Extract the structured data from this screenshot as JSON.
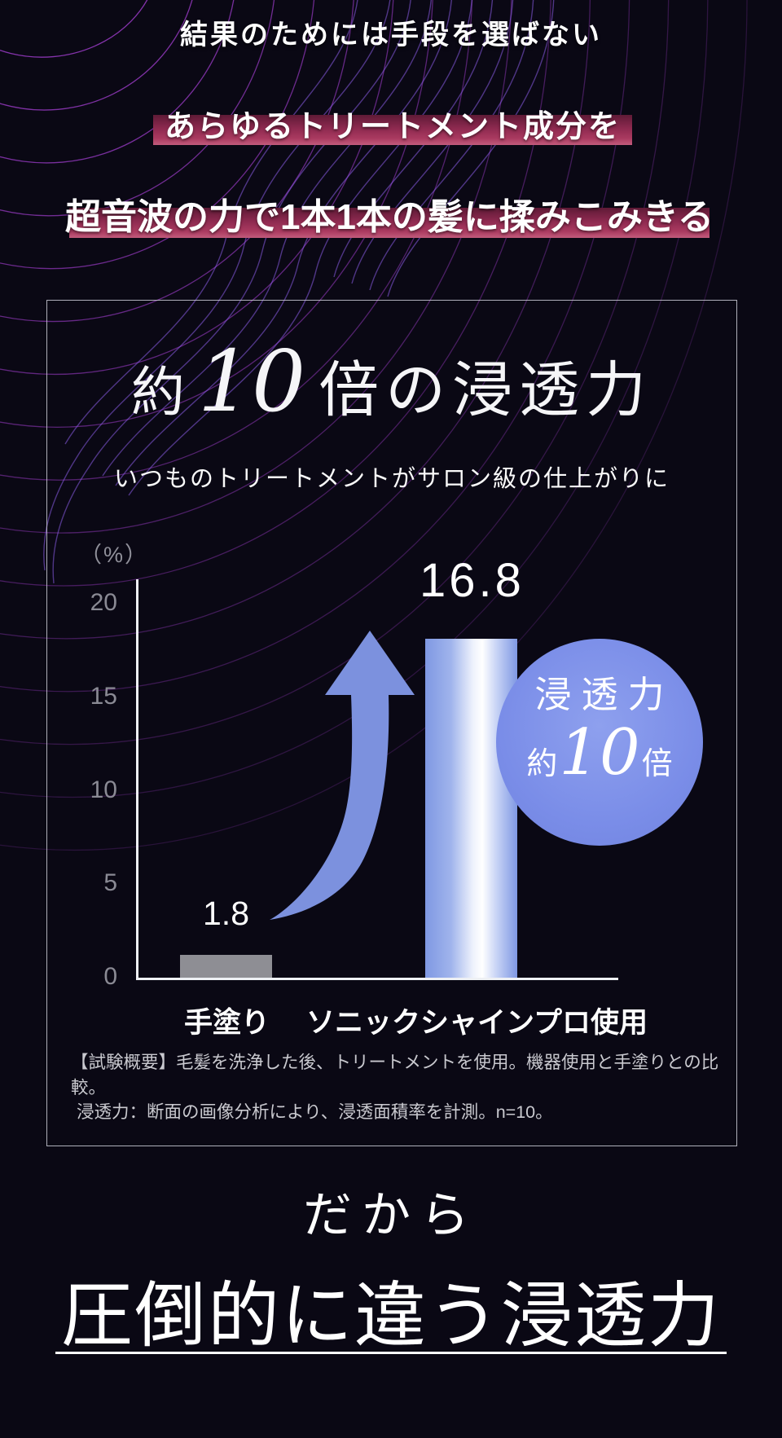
{
  "page": {
    "background": "#0a0814"
  },
  "header": {
    "line1": "結果のためには手段を選ばない",
    "band1": "あらゆるトリートメント成分を",
    "band2": "超音波の力で1本1本の髪に揉みこみきる",
    "band_color": "#a33158"
  },
  "card": {
    "title_prefix": "約",
    "title_number": "10",
    "title_suffix": "倍の浸透力",
    "subtitle": "いつものトリートメントがサロン級の仕上がりに",
    "unit": "（%）",
    "footnote1": "【試験概要】毛髪を洗浄した後、トリートメントを使用。機器使用と手塗りとの比較。",
    "footnote2": "浸透力：断面の画像分析により、浸透面積率を計測。n=10。"
  },
  "badge": {
    "line1": "浸透力",
    "prefix": "約",
    "number": "10",
    "suffix": "倍"
  },
  "chart_data": {
    "type": "bar",
    "title": "約10倍の浸透力",
    "subtitle": "いつものトリートメントがサロン級の仕上がりに",
    "categories": [
      "手塗り",
      "ソニックシャインプロ使用"
    ],
    "values": [
      1.8,
      16.8
    ],
    "value_labels": [
      "1.8",
      "16.8"
    ],
    "ylabel": "（%）",
    "yticks": [
      0,
      5,
      10,
      15,
      20
    ],
    "ylim": [
      0,
      20
    ],
    "grid": false,
    "annotation": "浸透力 約10倍",
    "bar_colors": [
      "#8e8e94",
      "#7f98e3 → #ffffff → #7f98e3"
    ]
  },
  "footer": {
    "kicker": "だから",
    "headline": "圧倒的に違う浸透力"
  },
  "colors": {
    "background": "#0a0814",
    "crimson_band": "#a33158",
    "gray_bar": "#8e8e94",
    "blue_arrow": "#7c91de",
    "blue_badge": "#7a8de8",
    "axis_text": "#8a8a94",
    "footnote_text": "#c9c9cf",
    "wave_purple": "#8a5ce6",
    "wave_magenta": "#a43fd2"
  }
}
